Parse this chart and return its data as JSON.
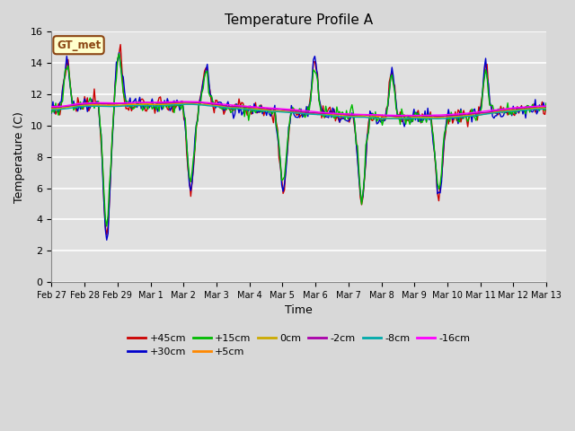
{
  "title": "Temperature Profile A",
  "xlabel": "Time",
  "ylabel": "Temperature (C)",
  "ylim": [
    0,
    16
  ],
  "yticks": [
    0,
    2,
    4,
    6,
    8,
    10,
    12,
    14,
    16
  ],
  "fig_bg_color": "#d8d8d8",
  "plot_bg_color": "#e0e0e0",
  "grid_color": "#ffffff",
  "legend_label": "GT_met",
  "colors": {
    "+45cm": "#cc0000",
    "+30cm": "#0000cc",
    "+15cm": "#00bb00",
    "+5cm": "#ff8800",
    "0cm": "#ccaa00",
    "-2cm": "#aa00aa",
    "-8cm": "#00aaaa",
    "-16cm": "#ff00ff"
  },
  "xtick_labels": [
    "Feb 27",
    "Feb 28",
    "Feb 29",
    "Mar 1",
    "Mar 2",
    "Mar 3",
    "Mar 4",
    "Mar 5",
    "Mar 6",
    "Mar 7",
    "Mar 8",
    "Mar 9",
    "Mar 10",
    "Mar 11",
    "Mar 12",
    "Mar 13"
  ]
}
